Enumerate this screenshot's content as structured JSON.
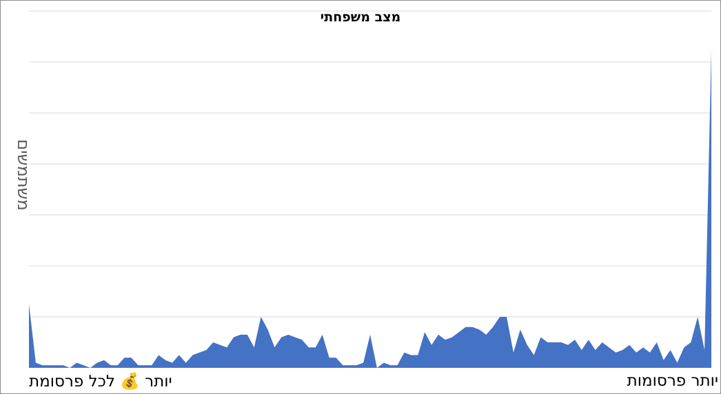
{
  "chart_data": {
    "type": "area",
    "title": "מצב משפחתי",
    "ylabel": "משתמשים",
    "x_left_label": "יותר 💰 לכל פרסומת",
    "x_right_label": "יותר פרסומות",
    "series_color": "#4472c4",
    "grid": true,
    "ylim": [
      0,
      7
    ],
    "y_gridlines": [
      1,
      2,
      3,
      4,
      5,
      6,
      7
    ],
    "series": [
      {
        "values": [
          1.25,
          0.1,
          0.05,
          0.05,
          0.05,
          0.05,
          0.0,
          0.1,
          0.05,
          0.0,
          0.1,
          0.15,
          0.05,
          0.05,
          0.2,
          0.2,
          0.05,
          0.05,
          0.05,
          0.25,
          0.15,
          0.1,
          0.25,
          0.1,
          0.25,
          0.3,
          0.35,
          0.5,
          0.45,
          0.4,
          0.6,
          0.65,
          0.65,
          0.4,
          1.0,
          0.75,
          0.4,
          0.6,
          0.65,
          0.6,
          0.55,
          0.4,
          0.4,
          0.65,
          0.2,
          0.2,
          0.05,
          0.05,
          0.05,
          0.1,
          0.65,
          0.0,
          0.1,
          0.05,
          0.05,
          0.3,
          0.25,
          0.25,
          0.7,
          0.45,
          0.65,
          0.55,
          0.6,
          0.7,
          0.8,
          0.8,
          0.75,
          0.65,
          0.8,
          1.0,
          1.0,
          0.3,
          0.75,
          0.45,
          0.25,
          0.6,
          0.5,
          0.5,
          0.5,
          0.45,
          0.55,
          0.35,
          0.55,
          0.35,
          0.5,
          0.4,
          0.3,
          0.35,
          0.45,
          0.3,
          0.4,
          0.3,
          0.5,
          0.15,
          0.35,
          0.1,
          0.4,
          0.5,
          1.0,
          0.35,
          6.25
        ]
      }
    ]
  }
}
